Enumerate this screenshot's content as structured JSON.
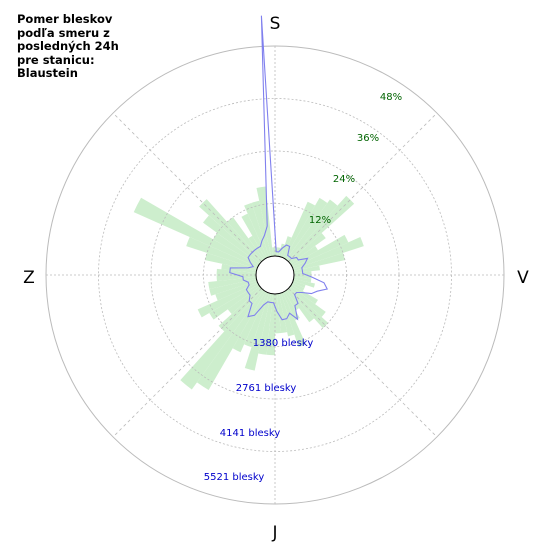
{
  "title": "Pomer bleskov\npodľa smeru z\nposledných 24h\npre stanicu:\nBlaustein",
  "chart_data": {
    "type": "polar-bar",
    "directions": {
      "north": "S",
      "east": "V",
      "south": "J",
      "west": "Z"
    },
    "radial_percent_ticks": [
      "12%",
      "24%",
      "36%",
      "48%"
    ],
    "radial_count_ticks": [
      "1380 blesky",
      "2761 blesky",
      "4141 blesky",
      "5521 blesky"
    ],
    "bin_width_deg": 6,
    "series": [
      {
        "kind": "bar",
        "color": "#cdeecd",
        "values_percent": [
          2,
          2,
          3,
          5,
          14,
          16,
          17,
          20,
          10,
          7,
          14,
          17,
          12,
          6,
          4,
          4,
          4,
          5,
          3,
          3,
          7,
          10,
          12,
          9,
          5,
          7,
          13,
          10,
          9,
          9,
          14,
          14,
          18,
          13,
          15,
          26,
          28,
          13,
          9,
          13,
          15,
          10,
          11,
          11,
          9,
          9,
          8,
          12,
          17,
          31,
          12,
          16,
          19,
          12,
          6,
          11,
          13,
          13,
          16,
          2
        ],
        "range": [
          0,
          48
        ]
      },
      {
        "kind": "line",
        "color": "#8080ee",
        "values_percent": [
          1,
          1,
          2,
          3,
          3,
          1,
          1,
          1,
          2,
          2,
          4,
          3,
          2,
          2,
          2,
          4,
          7,
          8,
          6,
          5,
          3,
          2,
          2,
          4,
          4,
          7,
          5,
          6,
          6,
          4,
          2,
          2,
          2,
          3,
          6,
          7,
          4,
          4,
          3,
          3,
          3,
          2,
          2,
          3,
          3,
          6,
          6,
          2,
          1,
          2,
          3,
          3,
          3,
          3,
          3,
          3,
          4,
          5,
          7,
          55
        ],
        "range": [
          0,
          48
        ]
      }
    ]
  },
  "colors": {
    "grid": "#bbbbbb",
    "percent_labels": "#006400",
    "count_labels": "#0000cc"
  }
}
